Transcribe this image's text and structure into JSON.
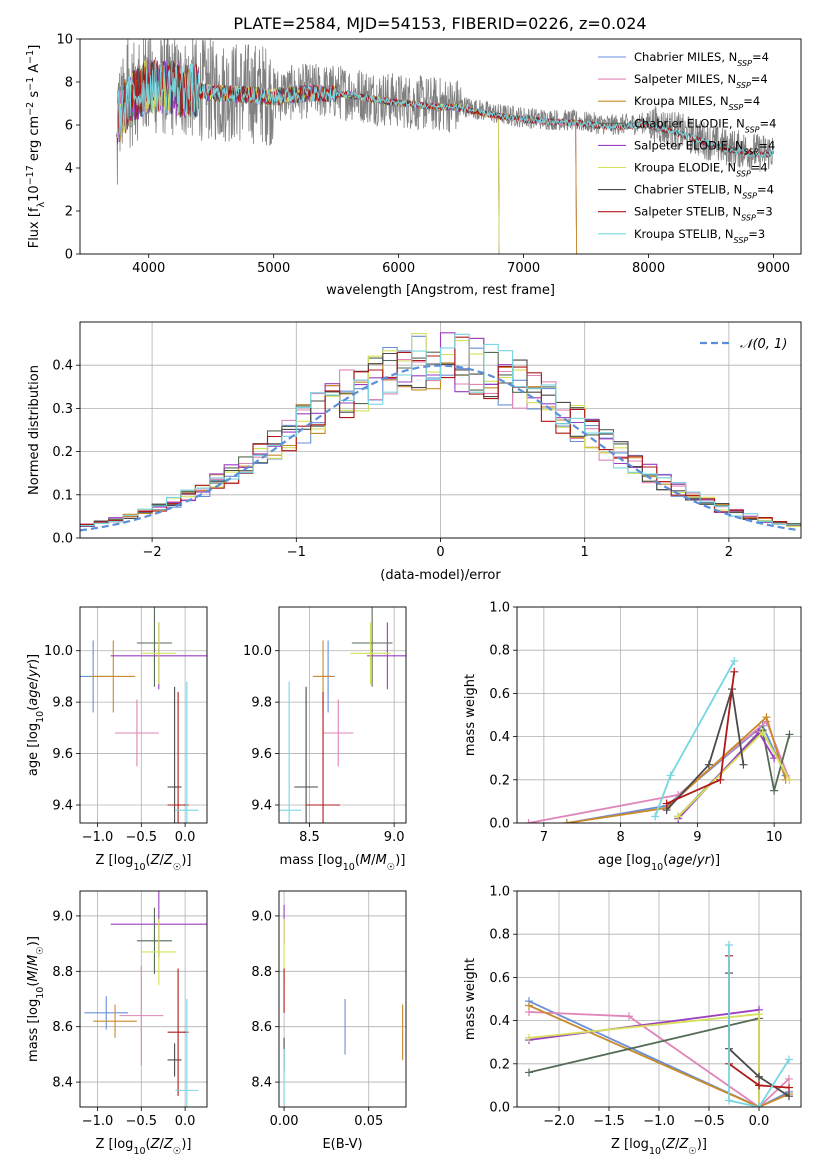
{
  "figure": {
    "title": "PLATE=2584, MJD=54153, FIBERID=0226, z=0.024"
  },
  "colors": {
    "Chabrier MILES": "#6a8fd9",
    "Salpeter MILES": "#e085b8",
    "Kroupa MILES": "#c98a2a",
    "Chabrier ELODIE": "#556b55",
    "Salpeter ELODIE": "#9b3fc0",
    "Kroupa ELODIE": "#d6e05a",
    "Chabrier STELIB": "#4a4a4a",
    "Salpeter STELIB": "#b01818",
    "Kroupa STELIB": "#78d6e0",
    "data": "#808080",
    "normal": "#5b8fd9",
    "orange": "#f07f1a"
  },
  "chart_data": [
    {
      "id": "spectrum",
      "type": "line",
      "title": "PLATE=2584, MJD=54153, FIBERID=0226, z=0.024",
      "xlabel": "wavelength [Angstrom, rest frame]",
      "ylabel": "Flux [f_λ 10^-17 erg cm^-2 s^-1 A^-1]",
      "xlim": [
        3450,
        9220
      ],
      "ylim": [
        0,
        10
      ],
      "xticks": [
        "4000",
        "5000",
        "6000",
        "7000",
        "8000",
        "9000"
      ],
      "yticks": [
        "0",
        "2",
        "4",
        "6",
        "8",
        "10"
      ],
      "grid": false,
      "legend_position": "top-right",
      "legend": [
        {
          "name": "Chabrier MILES",
          "n": "4"
        },
        {
          "name": "Salpeter MILES",
          "n": "4"
        },
        {
          "name": "Kroupa MILES",
          "n": "4"
        },
        {
          "name": "Chabrier ELODIE",
          "n": "4"
        },
        {
          "name": "Salpeter ELODIE",
          "n": "4"
        },
        {
          "name": "Kroupa ELODIE",
          "n": "4"
        },
        {
          "name": "Chabrier STELIB",
          "n": "4"
        },
        {
          "name": "Salpeter STELIB",
          "n": "3"
        },
        {
          "name": "Kroupa STELIB",
          "n": "3"
        }
      ],
      "data_envelope": {
        "x": [
          3750,
          3900,
          4000,
          4200,
          4500,
          4800,
          5000,
          5300,
          5600,
          5900,
          6200,
          6500,
          6800,
          7100,
          7400,
          7700,
          8000,
          8300,
          8600,
          8900,
          9000
        ],
        "y": [
          6.5,
          7.6,
          7.9,
          7.8,
          7.6,
          7.5,
          7.4,
          7.6,
          7.5,
          7.2,
          7.0,
          6.9,
          6.5,
          6.3,
          6.2,
          6.0,
          6.1,
          5.6,
          5.0,
          4.7,
          4.8
        ]
      }
    },
    {
      "id": "residuals",
      "type": "histogram",
      "xlabel": "(data-model)/error",
      "ylabel": "Normed distribution",
      "xlim": [
        -2.5,
        2.5
      ],
      "ylim": [
        0,
        0.5
      ],
      "xticks": [
        "−2",
        "−1",
        "0",
        "1",
        "2"
      ],
      "yticks": [
        "0.0",
        "0.1",
        "0.2",
        "0.3",
        "0.4"
      ],
      "grid": true,
      "legend_position": "top-right",
      "legend": [
        "𝒩(0, 1)"
      ],
      "bin_width": 0.1
    },
    {
      "id": "age-vs-Z",
      "type": "errorbar",
      "xlabel": "Z [log10(Z/Z☉)]",
      "ylabel": "age [log10(age/yr)]",
      "xlim": [
        -1.2,
        0.25
      ],
      "ylim": [
        9.33,
        10.17
      ],
      "xticks": [
        "−1.0",
        "−0.5",
        "0.0"
      ],
      "yticks": [
        "9.4",
        "9.6",
        "9.8",
        "10.0"
      ],
      "points": [
        {
          "series": "Chabrier MILES",
          "x": -1.05,
          "xerr": 0.25,
          "y": 9.9,
          "yerr": 0.14
        },
        {
          "series": "Salpeter MILES",
          "x": -0.55,
          "xerr": 0.25,
          "y": 9.68,
          "yerr": 0.13
        },
        {
          "series": "Kroupa MILES",
          "x": -0.82,
          "xerr": 0.25,
          "y": 9.9,
          "yerr": 0.14
        },
        {
          "series": "Chabrier ELODIE",
          "x": -0.35,
          "xerr": 0.2,
          "y": 10.03,
          "yerr": 0.17
        },
        {
          "series": "Salpeter ELODIE",
          "x": -0.3,
          "xerr": 0.55,
          "y": 9.98,
          "yerr": 0.13
        },
        {
          "series": "Kroupa ELODIE",
          "x": -0.3,
          "xerr": 0.2,
          "y": 9.99,
          "yerr": 0.12
        },
        {
          "series": "Chabrier STELIB",
          "x": -0.12,
          "xerr": 0.08,
          "y": 9.47,
          "yerr": 0.39
        },
        {
          "series": "Salpeter STELIB",
          "x": -0.08,
          "xerr": 0.12,
          "y": 9.4,
          "yerr": 0.44
        },
        {
          "series": "Kroupa STELIB",
          "x": 0.02,
          "xerr": 0.13,
          "y": 9.38,
          "yerr": 0.5
        }
      ]
    },
    {
      "id": "age-vs-mass",
      "type": "errorbar",
      "xlabel": "mass [log10(M/M☉)]",
      "ylabel": "",
      "xlim": [
        8.32,
        9.07
      ],
      "ylim": [
        9.33,
        10.17
      ],
      "xticks": [
        "8.5",
        "9.0"
      ],
      "yticks": [
        "9.4",
        "9.6",
        "9.8",
        "10.0"
      ],
      "points": [
        {
          "series": "Chabrier MILES",
          "x": 8.61,
          "xerr": 0.04,
          "y": 9.9,
          "yerr": 0.14
        },
        {
          "series": "Salpeter MILES",
          "x": 8.67,
          "xerr": 0.09,
          "y": 9.68,
          "yerr": 0.13
        },
        {
          "series": "Kroupa MILES",
          "x": 8.58,
          "xerr": 0.06,
          "y": 9.9,
          "yerr": 0.14
        },
        {
          "series": "Chabrier ELODIE",
          "x": 8.87,
          "xerr": 0.12,
          "y": 10.03,
          "yerr": 0.17
        },
        {
          "series": "Salpeter ELODIE",
          "x": 8.96,
          "xerr": 0.12,
          "y": 9.98,
          "yerr": 0.13
        },
        {
          "series": "Kroupa ELODIE",
          "x": 8.86,
          "xerr": 0.12,
          "y": 9.99,
          "yerr": 0.12
        },
        {
          "series": "Chabrier STELIB",
          "x": 8.48,
          "xerr": 0.07,
          "y": 9.47,
          "yerr": 0.39
        },
        {
          "series": "Salpeter STELIB",
          "x": 8.58,
          "xerr": 0.1,
          "y": 9.4,
          "yerr": 0.44
        },
        {
          "series": "Kroupa STELIB",
          "x": 8.38,
          "xerr": 0.07,
          "y": 9.38,
          "yerr": 0.5
        }
      ]
    },
    {
      "id": "weight-vs-age",
      "type": "line",
      "xlabel": "age [log10(age/yr)]",
      "ylabel": "mass weight",
      "xlim": [
        6.65,
        10.35
      ],
      "ylim": [
        0,
        1
      ],
      "xticks": [
        "7",
        "8",
        "9",
        "10"
      ],
      "yticks": [
        "0.0",
        "0.2",
        "0.4",
        "0.6",
        "0.8",
        "1.0"
      ],
      "series": [
        {
          "name": "Chabrier MILES",
          "x": [
            7.3,
            8.6,
            9.85,
            10.15
          ],
          "y": [
            0.0,
            0.08,
            0.45,
            0.22
          ]
        },
        {
          "name": "Salpeter MILES",
          "x": [
            6.8,
            8.75,
            9.9,
            10.2
          ],
          "y": [
            0.0,
            0.13,
            0.47,
            0.2
          ]
        },
        {
          "name": "Kroupa MILES",
          "x": [
            7.3,
            8.6,
            9.9,
            10.15
          ],
          "y": [
            0.0,
            0.07,
            0.49,
            0.2
          ]
        },
        {
          "name": "Chabrier ELODIE",
          "x": [
            8.75,
            9.85,
            10.0,
            10.2
          ],
          "y": [
            0.03,
            0.43,
            0.15,
            0.41
          ]
        },
        {
          "name": "Salpeter ELODIE",
          "x": [
            8.75,
            9.8,
            10.0
          ],
          "y": [
            0.02,
            0.42,
            0.3
          ]
        },
        {
          "name": "Kroupa ELODIE",
          "x": [
            8.75,
            9.85,
            10.2
          ],
          "y": [
            0.03,
            0.42,
            0.2
          ]
        },
        {
          "name": "Chabrier STELIB",
          "x": [
            8.6,
            9.15,
            9.45,
            9.6
          ],
          "y": [
            0.06,
            0.27,
            0.62,
            0.27
          ]
        },
        {
          "name": "Salpeter STELIB",
          "x": [
            8.6,
            9.3,
            9.48
          ],
          "y": [
            0.09,
            0.2,
            0.7
          ]
        },
        {
          "name": "Kroupa STELIB",
          "x": [
            8.45,
            8.65,
            9.48
          ],
          "y": [
            0.03,
            0.22,
            0.75
          ]
        }
      ]
    },
    {
      "id": "mass-vs-Z",
      "type": "errorbar",
      "xlabel": "Z [log10(Z/Z☉)]",
      "ylabel": "mass [log10(M/M☉)]",
      "xlim": [
        -1.2,
        0.25
      ],
      "ylim": [
        8.31,
        9.09
      ],
      "xticks": [
        "−1.0",
        "−0.5",
        "0.0"
      ],
      "yticks": [
        "8.4",
        "8.6",
        "8.8",
        "9.0"
      ],
      "points": [
        {
          "series": "Chabrier MILES",
          "x": -0.9,
          "xerr": 0.25,
          "y": 8.65,
          "yerr": 0.06
        },
        {
          "series": "Salpeter MILES",
          "x": -0.5,
          "xerr": 0.25,
          "y": 8.64,
          "yerr": 0.18
        },
        {
          "series": "Kroupa MILES",
          "x": -0.8,
          "xerr": 0.25,
          "y": 8.62,
          "yerr": 0.06
        },
        {
          "series": "Chabrier ELODIE",
          "x": -0.35,
          "xerr": 0.2,
          "y": 8.91,
          "yerr": 0.12
        },
        {
          "series": "Salpeter ELODIE",
          "x": -0.3,
          "xerr": 0.55,
          "y": 8.97,
          "yerr": 0.12
        },
        {
          "series": "Kroupa ELODIE",
          "x": -0.3,
          "xerr": 0.2,
          "y": 8.87,
          "yerr": 0.12
        },
        {
          "series": "Chabrier STELIB",
          "x": -0.12,
          "xerr": 0.08,
          "y": 8.48,
          "yerr": 0.06
        },
        {
          "series": "Salpeter STELIB",
          "x": -0.08,
          "xerr": 0.12,
          "y": 8.58,
          "yerr": 0.23
        },
        {
          "series": "Kroupa STELIB",
          "x": 0.02,
          "xerr": 0.13,
          "y": 8.37,
          "yerr": 0.33
        }
      ]
    },
    {
      "id": "mass-vs-ebv",
      "type": "errorbar",
      "xlabel": "E(B-V)",
      "ylabel": "",
      "xlim": [
        -0.003,
        0.072
      ],
      "ylim": [
        8.31,
        9.09
      ],
      "xticks": [
        "0.00",
        "0.05"
      ],
      "yticks": [
        "8.4",
        "8.6",
        "8.8",
        "9.0"
      ],
      "points": [
        {
          "series": "Chabrier MILES",
          "x": 0.036,
          "xerr": 0,
          "y": 8.6,
          "yerr": 0.1
        },
        {
          "series": "Kroupa MILES",
          "x": 0.07,
          "xerr": 0,
          "y": 8.58,
          "yerr": 0.1
        },
        {
          "series": "Salpeter ELODIE",
          "x": 0.0,
          "xerr": 0,
          "y": 8.97,
          "yerr": 0.07
        },
        {
          "series": "Kroupa ELODIE",
          "x": 0.0,
          "xerr": 0,
          "y": 8.87,
          "yerr": 0.12
        },
        {
          "series": "Salpeter STELIB",
          "x": 0.0,
          "xerr": 0,
          "y": 8.73,
          "yerr": 0.08
        },
        {
          "series": "Chabrier STELIB",
          "x": 0.0,
          "xerr": 0,
          "y": 8.5,
          "yerr": 0.06
        },
        {
          "series": "Kroupa STELIB",
          "x": 0.0,
          "xerr": 0,
          "y": 8.42,
          "yerr": 0.1
        }
      ]
    },
    {
      "id": "weight-vs-Z",
      "type": "line",
      "xlabel": "Z [log10(Z/Z☉)]",
      "ylabel": "mass weight",
      "xlim": [
        -2.42,
        0.42
      ],
      "ylim": [
        0,
        1
      ],
      "xticks": [
        "−2.0",
        "−1.5",
        "−1.0",
        "−0.5",
        "0.0"
      ],
      "yticks": [
        "0.0",
        "0.2",
        "0.4",
        "0.6",
        "0.8",
        "1.0"
      ],
      "series": [
        {
          "name": "Chabrier MILES",
          "x": [
            -2.3,
            0.0,
            0.3
          ],
          "y": [
            0.49,
            0.0,
            0.07
          ]
        },
        {
          "name": "Salpeter MILES",
          "x": [
            -2.3,
            -1.3,
            0.0,
            0.3
          ],
          "y": [
            0.44,
            0.42,
            0.0,
            0.13
          ]
        },
        {
          "name": "Kroupa MILES",
          "x": [
            -2.3,
            0.0,
            0.3
          ],
          "y": [
            0.47,
            0.0,
            0.06
          ]
        },
        {
          "name": "Chabrier ELODIE",
          "x": [
            -2.3,
            0.0,
            0.0
          ],
          "y": [
            0.16,
            0.41,
            0.0
          ]
        },
        {
          "name": "Salpeter ELODIE",
          "x": [
            -2.3,
            0.0,
            0.0
          ],
          "y": [
            0.31,
            0.45,
            0.0
          ]
        },
        {
          "name": "Kroupa ELODIE",
          "x": [
            -2.3,
            0.0,
            0.0
          ],
          "y": [
            0.32,
            0.43,
            0.0
          ]
        },
        {
          "name": "Chabrier STELIB",
          "x": [
            -0.3,
            -0.3,
            0.0,
            0.3
          ],
          "y": [
            0.62,
            0.27,
            0.14,
            0.05
          ]
        },
        {
          "name": "Salpeter STELIB",
          "x": [
            -0.3,
            -0.3,
            0.0,
            0.3
          ],
          "y": [
            0.7,
            0.2,
            0.1,
            0.09
          ]
        },
        {
          "name": "Kroupa STELIB",
          "x": [
            -0.3,
            -0.3,
            0.0,
            0.3
          ],
          "y": [
            0.75,
            0.03,
            0.0,
            0.22
          ]
        }
      ]
    }
  ]
}
